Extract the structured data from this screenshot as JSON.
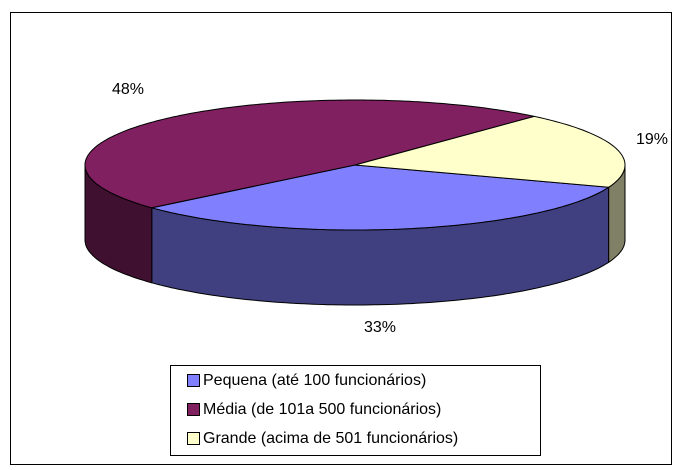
{
  "chart_data": {
    "type": "pie",
    "categories": [
      "Pequena (até 100 funcionários)",
      "Média (de 101a 500 funcionários)",
      "Grande (acima de 501 funcionários)"
    ],
    "values": [
      33,
      48,
      19
    ],
    "value_labels": [
      "33%",
      "48%",
      "19%"
    ],
    "colors": [
      "#8080ff",
      "#802060",
      "#ffffcc"
    ],
    "legend": "bottom"
  }
}
